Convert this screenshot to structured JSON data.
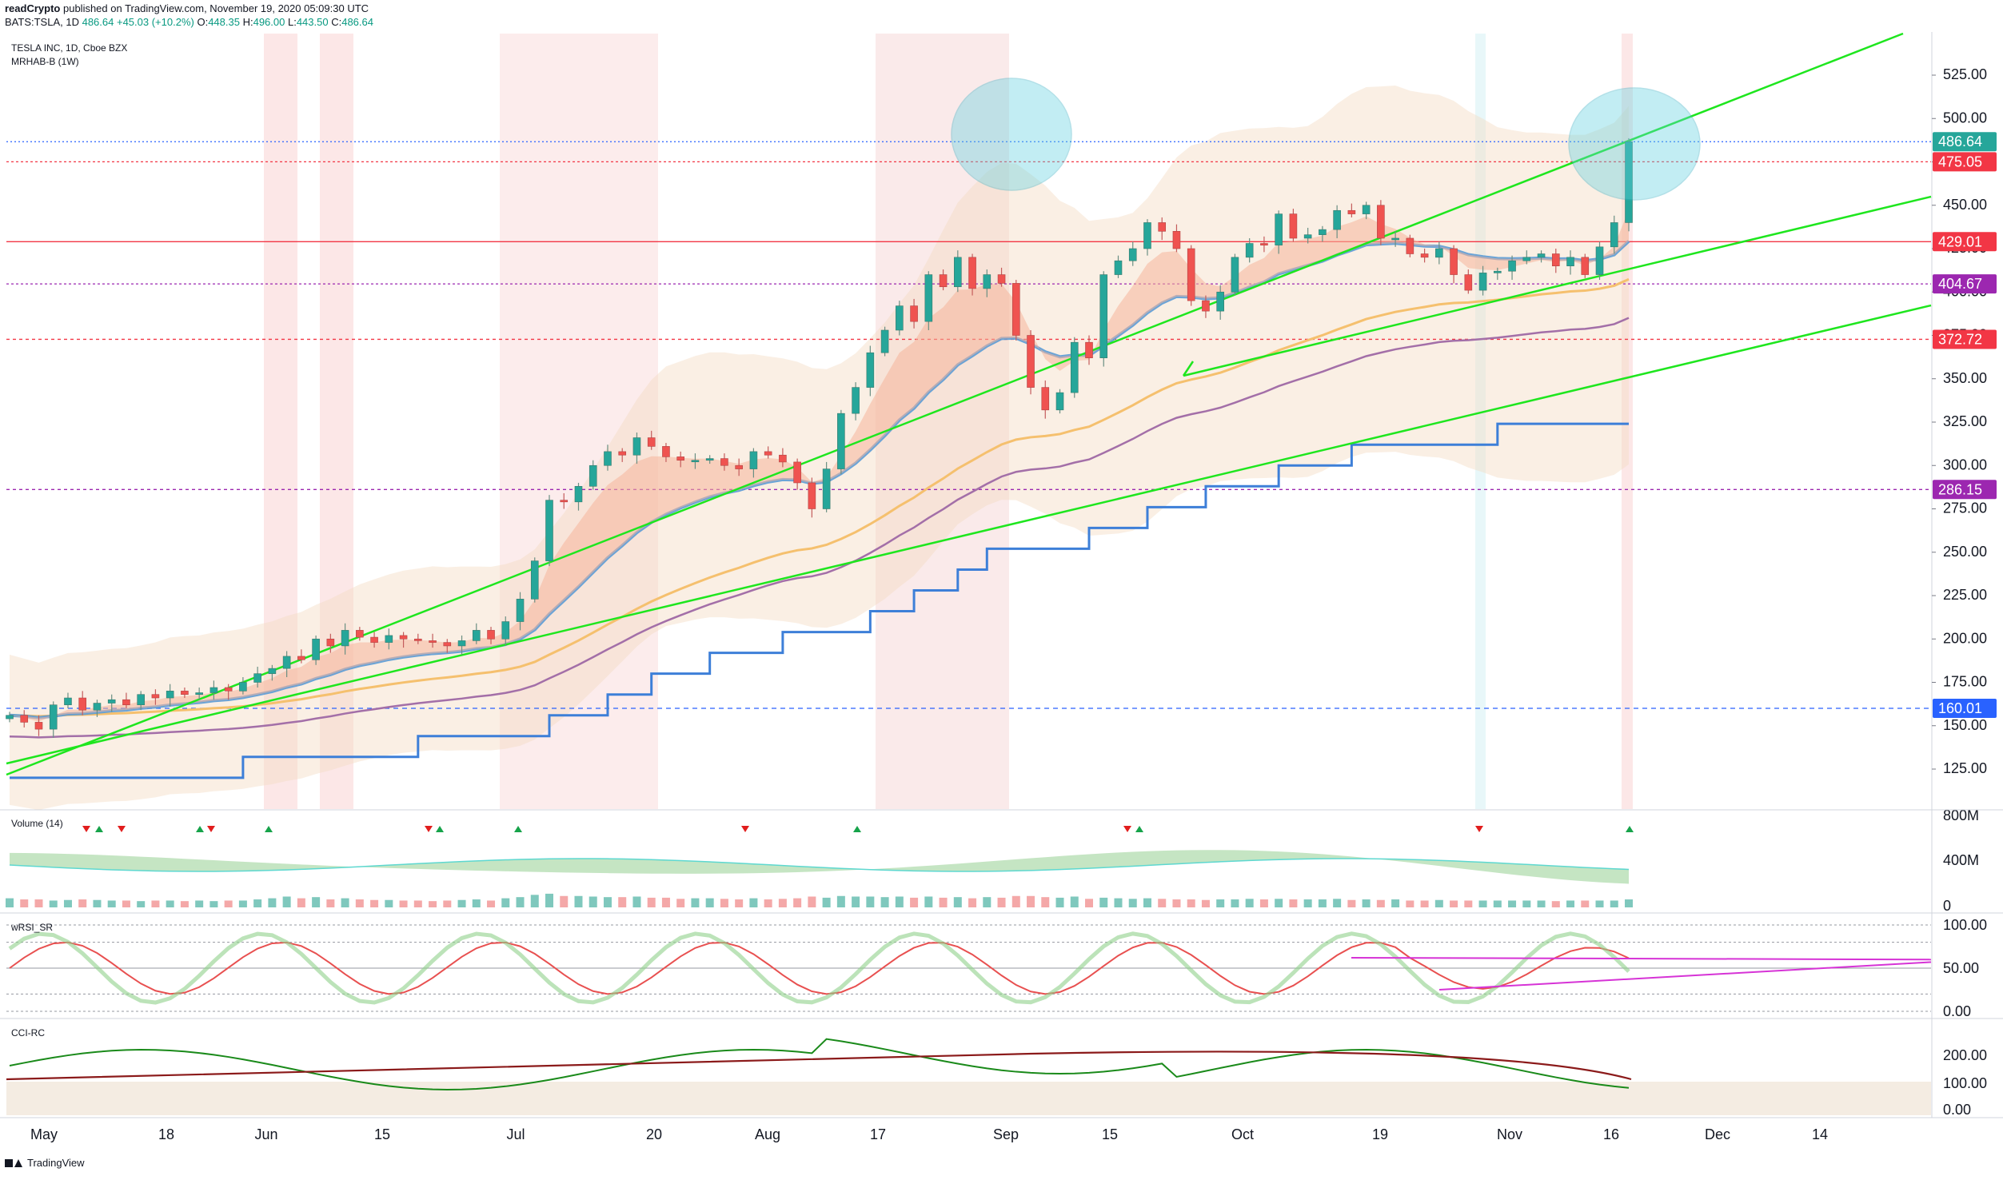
{
  "header": {
    "author": "readCrypto",
    "published_text": "published on TradingView.com, November 19, 2020 05:09:30 UTC",
    "symbol_line": "BATS:TSLA, 1D",
    "last": "486.64",
    "change": "+45.03 (+10.2%)",
    "o_label": "O:",
    "o": "448.35",
    "h_label": "H:",
    "h": "496.00",
    "l_label": "L:",
    "l": "443.50",
    "c_label": "C:",
    "c": "486.64"
  },
  "legend": {
    "title": "TESLA INC, 1D, Cboe BZX",
    "indicator": "MRHAB-B (1W)"
  },
  "colors": {
    "up": "#26a69a",
    "down": "#ef5350",
    "trendline": "#1ee61e",
    "ema_blue": "#5b9bd5",
    "ema_orange": "#f5c06e",
    "ema_purple": "#a36fa8",
    "cyan_zone": "#62d2e0",
    "magenta": "#d633d6"
  },
  "price_labels": [
    {
      "text": "486.64",
      "color": "#26a69a"
    },
    {
      "text": "475.05",
      "color": "#f23645"
    },
    {
      "text": "429.01",
      "color": "#f23645"
    },
    {
      "text": "404.67",
      "color": "#9c27b0"
    },
    {
      "text": "372.72",
      "color": "#f23645"
    },
    {
      "text": "286.15",
      "color": "#9c27b0"
    },
    {
      "text": "160.01",
      "color": "#2962ff"
    }
  ],
  "panels": {
    "volume": {
      "title": "Volume (14)",
      "ticks": [
        "800M",
        "400M",
        "0"
      ]
    },
    "wrsi": {
      "title": "wRSI_SR",
      "ticks": [
        "100.00",
        "50.00",
        "0.00"
      ]
    },
    "cci": {
      "title": "CCI-RC",
      "ticks": [
        "200.00",
        "100.00",
        "0.00"
      ]
    }
  },
  "footer": {
    "brand": "TradingView"
  },
  "chart_data": [
    {
      "type": "candlestick",
      "title": "TESLA INC, 1D, Cboe BZX",
      "ylim": [
        110,
        545
      ],
      "yticks": [
        "525.00",
        "500.00",
        "475.00",
        "450.00",
        "425.00",
        "400.00",
        "375.00",
        "350.00",
        "325.00",
        "300.00",
        "275.00",
        "250.00",
        "225.00",
        "200.00",
        "175.00",
        "150.00",
        "125.00"
      ],
      "xticks": [
        "May",
        "18",
        "Jun",
        "15",
        "Jul",
        "20",
        "Aug",
        "17",
        "Sep",
        "15",
        "Oct",
        "19",
        "Nov",
        "16",
        "Dec",
        "14"
      ],
      "horizontal_levels": [
        475.05,
        429.01,
        404.67,
        372.72,
        286.15,
        160.01
      ],
      "close": [
        156,
        152,
        148,
        162,
        166,
        159,
        163,
        165,
        162,
        168,
        166,
        170,
        168,
        169,
        172,
        170,
        175,
        180,
        183,
        190,
        188,
        200,
        196,
        205,
        201,
        198,
        202,
        200,
        199,
        198,
        196,
        199,
        205,
        200,
        210,
        223,
        245,
        280,
        279,
        288,
        300,
        308,
        306,
        316,
        311,
        305,
        303,
        303,
        304,
        300,
        298,
        308,
        306,
        302,
        290,
        275,
        298,
        330,
        345,
        365,
        378,
        392,
        383,
        410,
        403,
        420,
        402,
        410,
        405,
        375,
        345,
        332,
        342,
        371,
        362,
        410,
        418,
        425,
        440,
        435,
        425,
        395,
        389,
        400,
        420,
        428,
        427,
        445,
        431,
        433,
        436,
        447,
        445,
        450,
        431,
        431,
        422,
        420,
        425,
        410,
        401,
        411,
        412,
        418,
        420,
        422,
        415,
        420,
        410,
        426,
        440,
        486.64
      ]
    },
    {
      "type": "bar",
      "title": "Volume (14)",
      "ylim": [
        0,
        800
      ],
      "values": [
        80,
        70,
        70,
        60,
        65,
        70,
        65,
        60,
        60,
        55,
        60,
        60,
        55,
        60,
        55,
        60,
        60,
        70,
        80,
        95,
        80,
        90,
        70,
        80,
        70,
        65,
        65,
        60,
        60,
        55,
        60,
        65,
        70,
        60,
        80,
        90,
        110,
        120,
        100,
        100,
        95,
        90,
        90,
        95,
        85,
        85,
        75,
        80,
        80,
        75,
        70,
        80,
        70,
        75,
        80,
        95,
        85,
        100,
        95,
        95,
        90,
        95,
        85,
        95,
        85,
        90,
        80,
        90,
        85,
        100,
        100,
        90,
        85,
        95,
        75,
        85,
        80,
        75,
        80,
        75,
        70,
        70,
        65,
        70,
        70,
        75,
        70,
        75,
        70,
        70,
        70,
        75,
        65,
        70,
        65,
        70,
        60,
        60,
        65,
        60,
        60,
        60,
        60,
        60,
        60,
        60,
        55,
        60,
        60,
        60,
        60,
        70
      ]
    },
    {
      "type": "line",
      "title": "wRSI_SR",
      "ylim": [
        0,
        100
      ],
      "yticks": [
        100,
        50,
        0
      ]
    },
    {
      "type": "line",
      "title": "CCI-RC",
      "yticks": [
        "200.00",
        "100.00",
        "0.00"
      ]
    }
  ]
}
